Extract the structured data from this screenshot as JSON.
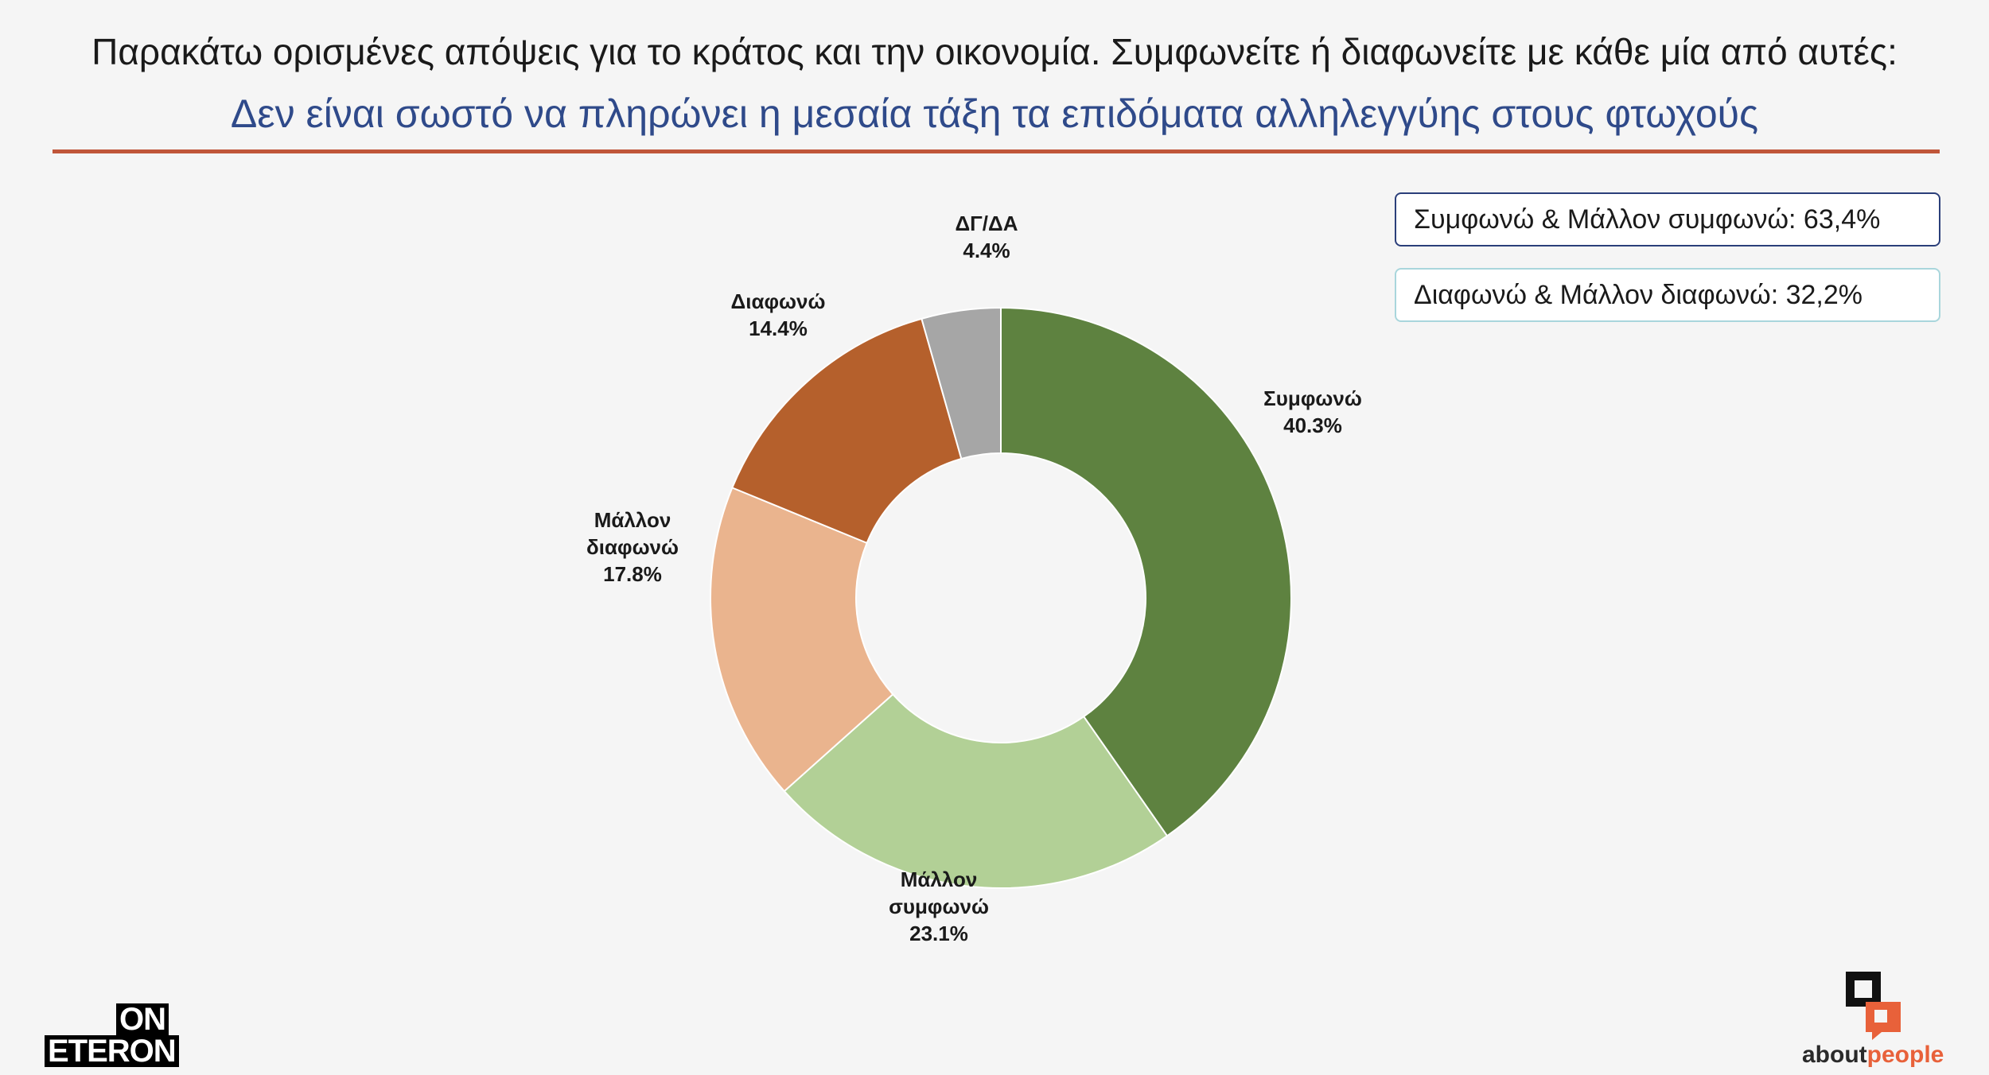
{
  "header": {
    "title": "Παρακάτω ορισμένες απόψεις για το κράτος και την οικονομία. Συμφωνείτε ή διαφωνείτε με κάθε μία από αυτές:",
    "subtitle": "Δεν είναι σωστό να πληρώνει η μεσαία τάξη τα επιδόματα αλληλεγγύης στους φτωχούς"
  },
  "summary": {
    "agree_text": "Συμφωνώ & Μάλλον συμφωνώ: 63,4%",
    "disagree_text": "Διαφωνώ & Μάλλον διαφωνώ: 32,2%"
  },
  "logos": {
    "left_top": "ON",
    "left_bottom": "ETERON",
    "right_a": "about",
    "right_b": "people"
  },
  "colors": {
    "accent_rule": "#c0563a",
    "subtitle": "#2f4a8a",
    "agree_border": "#2b3f7a",
    "disagree_border": "#a9d6dc"
  },
  "chart_data": {
    "type": "pie",
    "donut": true,
    "categories": [
      "Συμφωνώ",
      "Μάλλον συμφωνώ",
      "Μάλλον διαφωνώ",
      "Διαφωνώ",
      "ΔΓ/ΔΑ"
    ],
    "values": [
      40.3,
      23.1,
      17.8,
      14.4,
      4.4
    ],
    "value_labels": [
      "40.3%",
      "23.1%",
      "17.8%",
      "14.4%",
      "4.4%"
    ],
    "label_lines": [
      [
        "Συμφωνώ"
      ],
      [
        "Μάλλον",
        "συμφωνώ"
      ],
      [
        "Μάλλον",
        "διαφωνώ"
      ],
      [
        "Διαφωνώ"
      ],
      [
        "ΔΓ/ΔΑ"
      ]
    ],
    "colors": [
      "#5e8240",
      "#b2d096",
      "#eab48e",
      "#b5602c",
      "#a6a6a6"
    ]
  }
}
